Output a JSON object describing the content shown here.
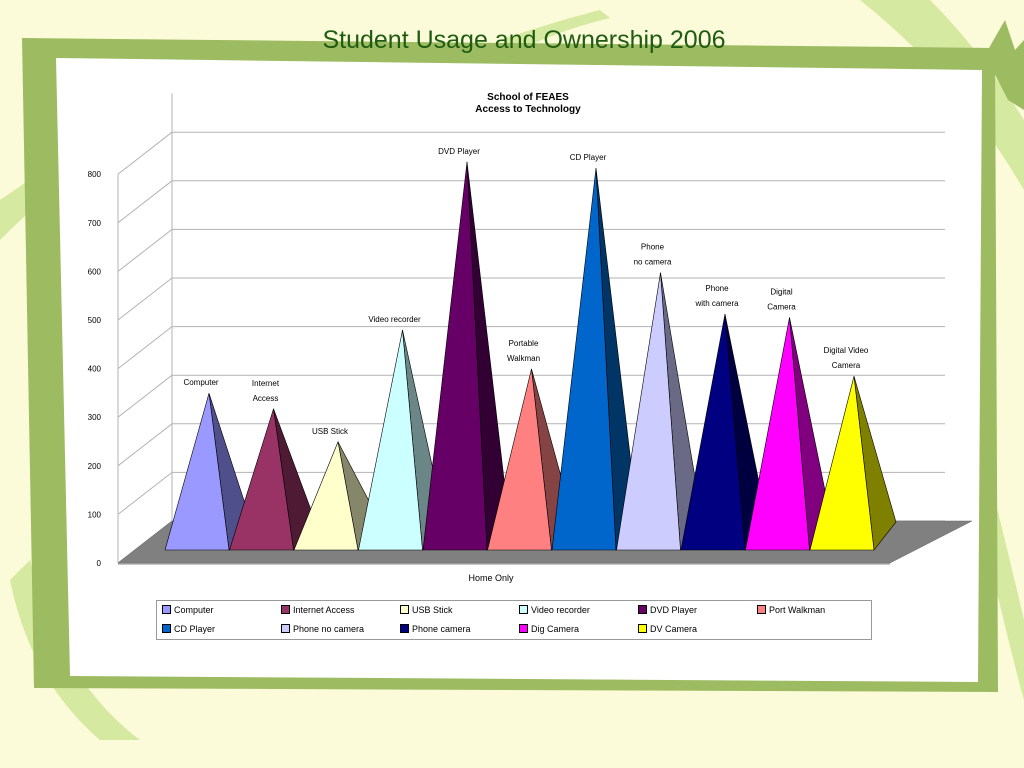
{
  "slide": {
    "title": "Student Usage and Ownership 2006"
  },
  "colors": {
    "background": "#fbfbd9",
    "frame": "#9dbb61",
    "title": "#1f5c12"
  },
  "chart_data": {
    "type": "bar",
    "style": "3d-pyramid",
    "title": "School of FEAES",
    "subtitle": "Access to Technology",
    "xlabel": "Home Only",
    "ylabel": "",
    "ylim": [
      0,
      800
    ],
    "yticks": [
      0,
      100,
      200,
      300,
      400,
      500,
      600,
      700,
      800
    ],
    "grid": true,
    "legend_position": "bottom",
    "categories": [
      "Home Only"
    ],
    "series": [
      {
        "name": "Computer",
        "label": [
          "Computer"
        ],
        "values": [
          302
        ],
        "color": "#9999ff",
        "dark": "#4f4f8c"
      },
      {
        "name": "Internet Access",
        "label": [
          "Internet",
          "Access"
        ],
        "values": [
          270
        ],
        "color": "#993366",
        "dark": "#4e1a34"
      },
      {
        "name": "USB Stick",
        "label": [
          "USB Stick"
        ],
        "values": [
          202
        ],
        "color": "#ffffcc",
        "dark": "#86866a"
      },
      {
        "name": "Video recorder",
        "label": [
          "Video recorder"
        ],
        "values": [
          432
        ],
        "color": "#ccffff",
        "dark": "#6a8686"
      },
      {
        "name": "DVD Player",
        "label": [
          "DVD Player"
        ],
        "values": [
          778
        ],
        "color": "#660066",
        "dark": "#330033"
      },
      {
        "name": "Port Walkman",
        "label": [
          "Portable",
          "Walkman"
        ],
        "values": [
          352
        ],
        "color": "#ff8080",
        "dark": "#864343"
      },
      {
        "name": "CD Player",
        "label": [
          "CD Player"
        ],
        "values": [
          765
        ],
        "color": "#0066cc",
        "dark": "#003566"
      },
      {
        "name": "Phone no camera",
        "label": [
          "Phone",
          "no camera"
        ],
        "values": [
          550
        ],
        "color": "#ccccff",
        "dark": "#6a6a86"
      },
      {
        "name": "Phone camera",
        "label": [
          "Phone",
          "with camera"
        ],
        "values": [
          465
        ],
        "color": "#000080",
        "dark": "#000040"
      },
      {
        "name": "Dig Camera",
        "label": [
          "Digital",
          "Camera"
        ],
        "values": [
          458
        ],
        "color": "#ff00ff",
        "dark": "#800080"
      },
      {
        "name": "DV Camera",
        "label": [
          "Digital Video",
          "Camera"
        ],
        "values": [
          337
        ],
        "color": "#ffff00",
        "dark": "#808000"
      }
    ]
  }
}
